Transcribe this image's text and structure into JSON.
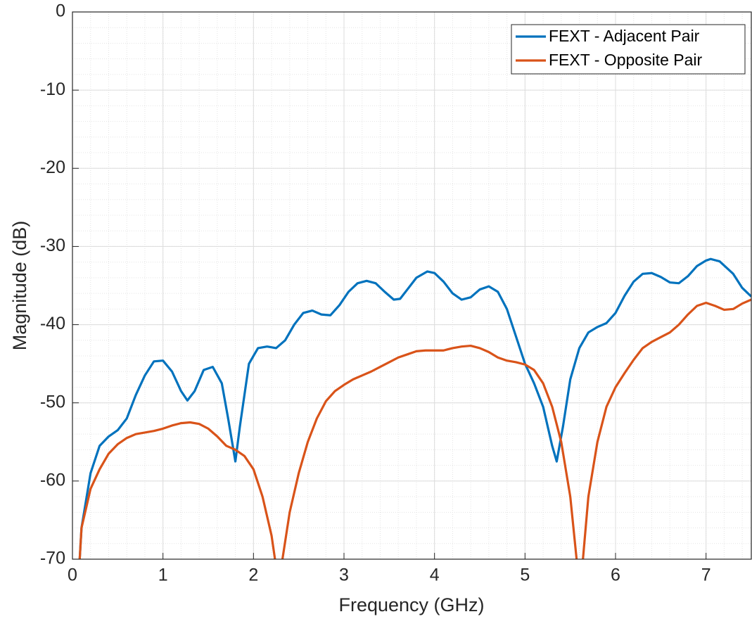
{
  "chart_data": {
    "type": "line",
    "xlabel": "Frequency (GHz)",
    "ylabel": "Magnitude (dB)",
    "xlim": [
      0,
      7.5
    ],
    "ylim": [
      -70,
      0
    ],
    "xticks": [
      0,
      1,
      2,
      3,
      4,
      5,
      6,
      7
    ],
    "yticks": [
      -70,
      -60,
      -50,
      -40,
      -30,
      -20,
      -10,
      0
    ],
    "grid": true,
    "minor_grid": true,
    "legend": "northeast",
    "series": [
      {
        "name": "FEXT - Adjacent Pair",
        "color": "#0072bd",
        "x": [
          0.08,
          0.1,
          0.2,
          0.3,
          0.4,
          0.5,
          0.6,
          0.7,
          0.8,
          0.9,
          1.0,
          1.1,
          1.2,
          1.27,
          1.35,
          1.45,
          1.55,
          1.65,
          1.72,
          1.8,
          1.85,
          1.95,
          2.05,
          2.15,
          2.25,
          2.35,
          2.45,
          2.55,
          2.65,
          2.75,
          2.85,
          2.95,
          3.05,
          3.15,
          3.25,
          3.35,
          3.45,
          3.55,
          3.62,
          3.7,
          3.8,
          3.92,
          4.0,
          4.1,
          4.2,
          4.3,
          4.4,
          4.5,
          4.6,
          4.7,
          4.8,
          4.9,
          5.0,
          5.1,
          5.2,
          5.3,
          5.35,
          5.42,
          5.5,
          5.6,
          5.7,
          5.8,
          5.9,
          6.0,
          6.1,
          6.2,
          6.3,
          6.4,
          6.5,
          6.6,
          6.7,
          6.8,
          6.9,
          7.0,
          7.05,
          7.15,
          7.3,
          7.4,
          7.5
        ],
        "values": [
          -70,
          -66,
          -59,
          -55.5,
          -54.3,
          -53.5,
          -52,
          -49,
          -46.5,
          -44.7,
          -44.6,
          -46,
          -48.5,
          -49.7,
          -48.5,
          -45.8,
          -45.4,
          -47.5,
          -52,
          -57.5,
          -53,
          -45,
          -43,
          -42.8,
          -43,
          -42,
          -40,
          -38.5,
          -38.2,
          -38.7,
          -38.8,
          -37.5,
          -35.8,
          -34.7,
          -34.4,
          -34.7,
          -35.8,
          -36.8,
          -36.7,
          -35.5,
          -34,
          -33.2,
          -33.4,
          -34.5,
          -36,
          -36.8,
          -36.5,
          -35.5,
          -35.1,
          -35.8,
          -38,
          -41.5,
          -45,
          -47.5,
          -50.5,
          -55.5,
          -57.5,
          -53,
          -47,
          -43,
          -41,
          -40.3,
          -39.8,
          -38.5,
          -36.3,
          -34.5,
          -33.5,
          -33.4,
          -33.9,
          -34.6,
          -34.7,
          -33.8,
          -32.5,
          -31.8,
          -31.6,
          -31.9,
          -33.5,
          -35.3,
          -36.4
        ]
      },
      {
        "name": "FEXT - Opposite Pair",
        "color": "#d95319",
        "x": [
          0.08,
          0.1,
          0.2,
          0.3,
          0.4,
          0.5,
          0.6,
          0.7,
          0.8,
          0.9,
          1.0,
          1.1,
          1.2,
          1.3,
          1.4,
          1.5,
          1.6,
          1.7,
          1.8,
          1.9,
          2.0,
          2.1,
          2.2,
          2.25,
          2.27,
          2.32,
          2.4,
          2.5,
          2.6,
          2.7,
          2.8,
          2.9,
          3.0,
          3.1,
          3.2,
          3.3,
          3.4,
          3.5,
          3.6,
          3.7,
          3.8,
          3.9,
          4.0,
          4.1,
          4.2,
          4.3,
          4.4,
          4.5,
          4.6,
          4.7,
          4.8,
          4.9,
          5.0,
          5.1,
          5.2,
          5.3,
          5.4,
          5.5,
          5.57,
          5.6,
          5.64,
          5.7,
          5.8,
          5.9,
          6.0,
          6.1,
          6.2,
          6.3,
          6.4,
          6.5,
          6.6,
          6.7,
          6.8,
          6.9,
          7.0,
          7.1,
          7.2,
          7.3,
          7.4,
          7.5
        ],
        "values": [
          -70,
          -66,
          -61,
          -58.5,
          -56.5,
          -55.3,
          -54.5,
          -54,
          -53.8,
          -53.6,
          -53.3,
          -52.9,
          -52.6,
          -52.5,
          -52.7,
          -53.3,
          -54.3,
          -55.5,
          -56,
          -56.8,
          -58.5,
          -62,
          -67,
          -71,
          -76,
          -70,
          -64,
          -59,
          -55,
          -52,
          -49.8,
          -48.5,
          -47.7,
          -47,
          -46.5,
          -46,
          -45.4,
          -44.8,
          -44.2,
          -43.8,
          -43.4,
          -43.3,
          -43.3,
          -43.3,
          -43,
          -42.8,
          -42.7,
          -43,
          -43.5,
          -44.2,
          -44.6,
          -44.8,
          -45.1,
          -45.8,
          -47.5,
          -50.5,
          -55,
          -62,
          -70,
          -76,
          -70,
          -62,
          -55,
          -50.5,
          -48,
          -46.2,
          -44.5,
          -43,
          -42.2,
          -41.6,
          -41,
          -40,
          -38.7,
          -37.6,
          -37.2,
          -37.6,
          -38.1,
          -38,
          -37.3,
          -36.8
        ]
      }
    ]
  }
}
